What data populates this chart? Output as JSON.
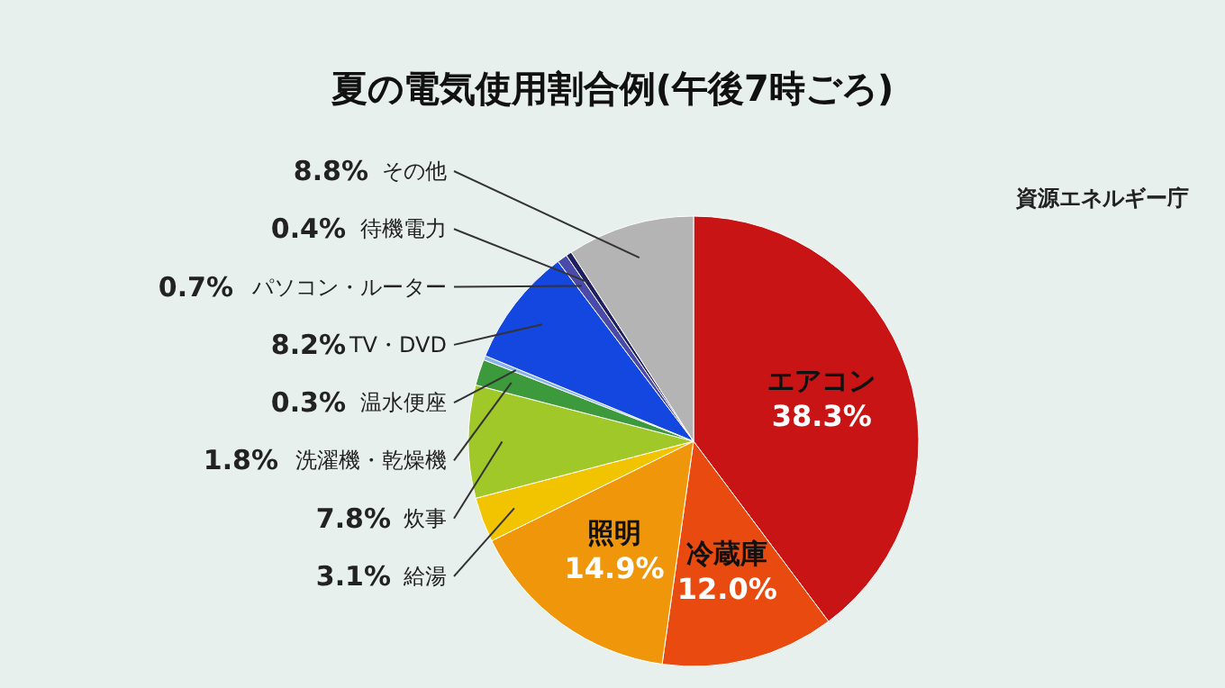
{
  "chart_data": {
    "type": "pie",
    "title": "夏の電気使用割合例(午後7時ごろ)",
    "annotations": [
      "資源エネルギー庁"
    ],
    "categories": [
      "エアコン",
      "冷蔵庫",
      "照明",
      "給湯",
      "炊事",
      "洗濯機・乾燥機",
      "温水便座",
      "TV・DVD",
      "パソコン・ルーター",
      "待機電力",
      "その他"
    ],
    "values": [
      38.3,
      12.0,
      14.9,
      3.1,
      7.8,
      1.8,
      0.3,
      8.2,
      0.7,
      0.4,
      8.8
    ],
    "colors": [
      "#c81414",
      "#e84a10",
      "#f0960a",
      "#f2c400",
      "#a0c828",
      "#3c9a3c",
      "#8ab4e6",
      "#1446e0",
      "#4a4aa8",
      "#202060",
      "#b4b4b4"
    ],
    "value_labels": [
      "38.3%",
      "12.0%",
      "14.9%",
      "3.1%",
      "7.8%",
      "1.8%",
      "0.3%",
      "8.2%",
      "0.7%",
      "0.4%",
      "8.8%"
    ],
    "legend": false
  }
}
